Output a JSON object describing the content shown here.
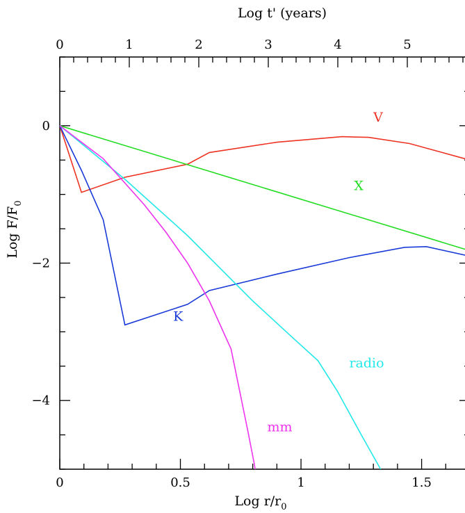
{
  "chart_data": {
    "type": "line",
    "title": "",
    "xlabel": "Log r/r",
    "xlabel_subscript": "0",
    "x2label": "Log t' (years)",
    "ylabel": "Log F/F",
    "ylabel_subscript": "0",
    "xlim": [
      0,
      1.7
    ],
    "ylim": [
      -5,
      1
    ],
    "x2lim": [
      0,
      5.9
    ],
    "x_ticks": [
      {
        "value": 0,
        "label": "0"
      },
      {
        "value": 0.5,
        "label": "0.5"
      },
      {
        "value": 1,
        "label": "1"
      },
      {
        "value": 1.5,
        "label": "1.5"
      }
    ],
    "x2_ticks": [
      {
        "value": 0,
        "label": "0"
      },
      {
        "value": 1,
        "label": "1"
      },
      {
        "value": 2,
        "label": "2"
      },
      {
        "value": 3,
        "label": "3"
      },
      {
        "value": 4,
        "label": "4"
      },
      {
        "value": 5,
        "label": "5"
      }
    ],
    "y_ticks": [
      {
        "value": 0,
        "label": "0"
      },
      {
        "value": -2,
        "label": "−2"
      },
      {
        "value": -4,
        "label": "−4"
      }
    ],
    "series": [
      {
        "name": "V",
        "color": "#ee3322",
        "label_at": [
          1.3,
          0.06
        ],
        "points": [
          [
            0,
            0
          ],
          [
            0.09,
            -0.97
          ],
          [
            0.27,
            -0.75
          ],
          [
            0.53,
            -0.56
          ],
          [
            0.62,
            -0.39
          ],
          [
            0.9,
            -0.24
          ],
          [
            1.17,
            -0.16
          ],
          [
            1.28,
            -0.17
          ],
          [
            1.45,
            -0.26
          ],
          [
            1.7,
            -0.5
          ]
        ]
      },
      {
        "name": "X",
        "color": "#22dd22",
        "label_at": [
          1.22,
          -0.94
        ],
        "points": [
          [
            0,
            0
          ],
          [
            1.7,
            -1.82
          ]
        ]
      },
      {
        "name": "K",
        "color": "#1a3ad8",
        "label_at": [
          0.47,
          -2.84
        ],
        "points": [
          [
            0,
            0
          ],
          [
            0.09,
            -0.65
          ],
          [
            0.18,
            -1.37
          ],
          [
            0.27,
            -2.9
          ],
          [
            0.53,
            -2.6
          ],
          [
            0.62,
            -2.4
          ],
          [
            0.9,
            -2.16
          ],
          [
            1.2,
            -1.92
          ],
          [
            1.43,
            -1.77
          ],
          [
            1.52,
            -1.76
          ],
          [
            1.7,
            -1.9
          ]
        ]
      },
      {
        "name": "radio",
        "color": "#22e8e8",
        "label_at": [
          1.2,
          -3.52
        ],
        "points": [
          [
            0,
            0
          ],
          [
            0.27,
            -0.78
          ],
          [
            0.53,
            -1.6
          ],
          [
            0.8,
            -2.55
          ],
          [
            0.97,
            -3.1
          ],
          [
            1.07,
            -3.42
          ],
          [
            1.15,
            -3.86
          ],
          [
            1.25,
            -4.5
          ],
          [
            1.33,
            -5.0
          ]
        ]
      },
      {
        "name": "mm",
        "color": "#ee33ee",
        "label_at": [
          0.86,
          -4.45
        ],
        "points": [
          [
            0,
            0
          ],
          [
            0.18,
            -0.48
          ],
          [
            0.35,
            -1.15
          ],
          [
            0.44,
            -1.55
          ],
          [
            0.53,
            -2.0
          ],
          [
            0.62,
            -2.55
          ],
          [
            0.71,
            -3.25
          ],
          [
            0.78,
            -4.45
          ],
          [
            0.805,
            -4.9
          ],
          [
            0.81,
            -5.0
          ]
        ]
      }
    ]
  }
}
